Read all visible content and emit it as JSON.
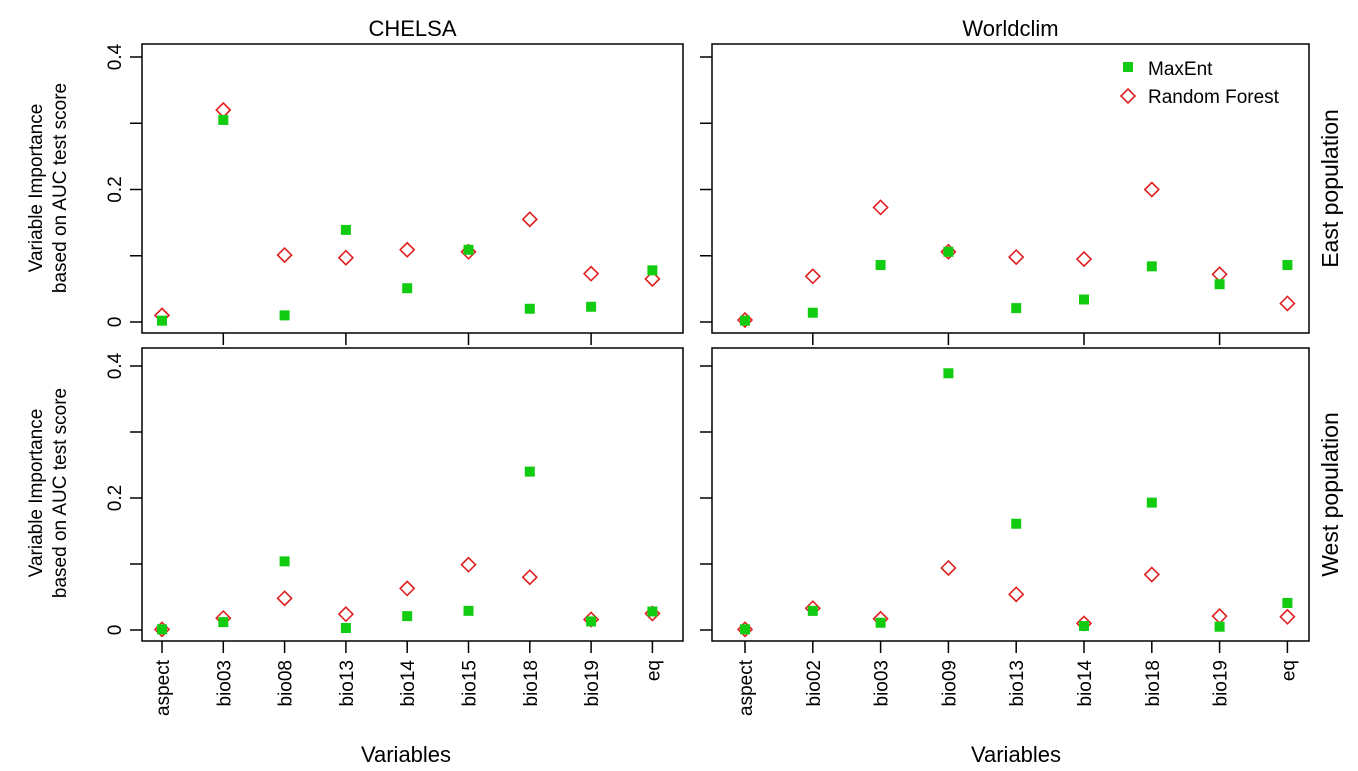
{
  "colors": {
    "maxent": "#11cc11",
    "random_forest": "#e02020",
    "axis": "#000000"
  },
  "y_axis_label_line1": "Variable Importance",
  "y_axis_label_line2": "based on AUC test score",
  "x_axis_label": "Variables",
  "legend": {
    "placement": "top-right",
    "items": [
      {
        "label": "MaxEnt",
        "marker": "filled-square"
      },
      {
        "label": "Random Forest",
        "marker": "open-diamond"
      }
    ]
  },
  "chart_data": [
    {
      "type": "scatter",
      "title": "CHELSA",
      "row_label": "",
      "ylim": [
        0,
        0.4
      ],
      "ytick_labels": [
        "0",
        "0.2",
        "0.4"
      ],
      "categories": [
        "aspect",
        "bio03",
        "bio08",
        "bio13",
        "bio14",
        "bio15",
        "bio18",
        "bio19",
        "eq"
      ],
      "series": [
        {
          "name": "MaxEnt",
          "values": [
            0.002,
            0.305,
            0.01,
            0.139,
            0.051,
            0.109,
            0.02,
            0.023,
            0.078
          ]
        },
        {
          "name": "Random Forest",
          "values": [
            0.01,
            0.32,
            0.101,
            0.097,
            0.109,
            0.106,
            0.155,
            0.073,
            0.065
          ]
        }
      ]
    },
    {
      "type": "scatter",
      "title": "Worldclim",
      "row_label": "East population",
      "ylim": [
        0,
        0.4
      ],
      "ytick_labels": [],
      "categories": [
        "aspect",
        "bio02",
        "bio03",
        "bio09",
        "bio13",
        "bio14",
        "bio18",
        "bio19",
        "eq"
      ],
      "series": [
        {
          "name": "MaxEnt",
          "values": [
            0.002,
            0.014,
            0.086,
            0.106,
            0.021,
            0.034,
            0.084,
            0.057,
            0.086
          ]
        },
        {
          "name": "Random Forest",
          "values": [
            0.003,
            0.069,
            0.173,
            0.106,
            0.098,
            0.095,
            0.2,
            0.072,
            0.028
          ]
        }
      ]
    },
    {
      "type": "scatter",
      "title": "",
      "row_label": "",
      "ylim": [
        0,
        0.4
      ],
      "ytick_labels": [
        "0",
        "0.2",
        "0.4"
      ],
      "categories": [
        "aspect",
        "bio03",
        "bio08",
        "bio13",
        "bio14",
        "bio15",
        "bio18",
        "bio19",
        "eq"
      ],
      "series": [
        {
          "name": "MaxEnt",
          "values": [
            0.001,
            0.012,
            0.104,
            0.003,
            0.021,
            0.029,
            0.24,
            0.013,
            0.028
          ]
        },
        {
          "name": "Random Forest",
          "values": [
            0.001,
            0.018,
            0.048,
            0.024,
            0.063,
            0.099,
            0.08,
            0.016,
            0.025
          ]
        }
      ]
    },
    {
      "type": "scatter",
      "title": "",
      "row_label": "West population",
      "ylim": [
        0,
        0.4
      ],
      "ytick_labels": [],
      "categories": [
        "aspect",
        "bio02",
        "bio03",
        "bio09",
        "bio13",
        "bio14",
        "bio18",
        "bio19",
        "eq"
      ],
      "series": [
        {
          "name": "MaxEnt",
          "values": [
            0.001,
            0.029,
            0.011,
            0.389,
            0.161,
            0.006,
            0.193,
            0.005,
            0.041
          ]
        },
        {
          "name": "Random Forest",
          "values": [
            0.001,
            0.033,
            0.017,
            0.094,
            0.054,
            0.01,
            0.084,
            0.021,
            0.02
          ]
        }
      ]
    }
  ]
}
